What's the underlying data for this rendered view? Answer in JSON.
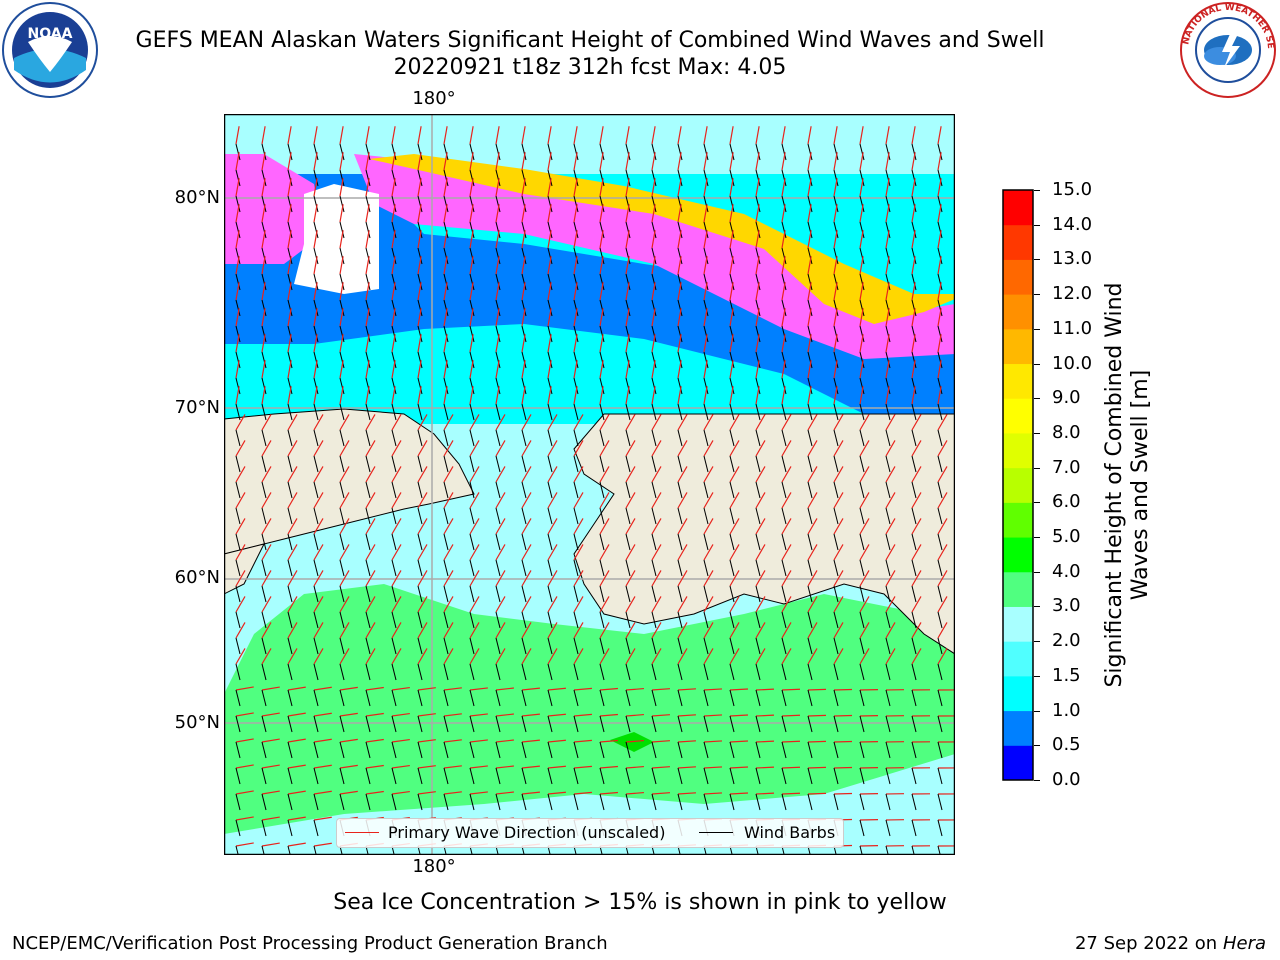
{
  "header": {
    "title_line1": "GEFS MEAN Alaskan Waters Significant Height of Combined Wind Waves and Swell",
    "title_line2": "20220921 t18z 312h fcst   Max: 4.05"
  },
  "logos": {
    "left_icon": "noaa-logo",
    "left_text": "NOAA",
    "right_icon": "nws-logo",
    "right_text": "NATIONAL WEATHER SERVICE"
  },
  "map": {
    "lon_label_top": "180°",
    "lon_label_bottom": "180°",
    "lat_labels": [
      "80°N",
      "70°N",
      "60°N",
      "50°N"
    ],
    "colors": {
      "land": "#efecdc",
      "coast": "#000000",
      "grid": "#aaaaaa",
      "wave_arrow": "#e8231c",
      "barb": "#000000"
    }
  },
  "colorbar": {
    "label": "Significant Height of Combined Wind Waves and Swell [m]",
    "ticks": [
      "0.0",
      "0.5",
      "1.0",
      "1.5",
      "2.0",
      "3.0",
      "4.0",
      "5.0",
      "6.0",
      "7.0",
      "8.0",
      "9.0",
      "10.0",
      "11.0",
      "12.0",
      "13.0",
      "14.0",
      "15.0"
    ],
    "colors": [
      "#0000ff",
      "#0080ff",
      "#00ffff",
      "#50ffff",
      "#a8ffff",
      "#50ff80",
      "#00ff00",
      "#60ff00",
      "#b8ff00",
      "#e0ff00",
      "#ffff00",
      "#ffe800",
      "#ffb800",
      "#ff9000",
      "#ff6800",
      "#ff3800",
      "#ff0000"
    ]
  },
  "legend": {
    "wave_label": "Primary Wave Direction (unscaled)",
    "barb_label": "Wind Barbs"
  },
  "ice_note": "Sea Ice Concentration > 15% is shown in pink to yellow",
  "footer": {
    "left": "NCEP/EMC/Verification Post Processing Product Generation Branch",
    "date": "27 Sep 2022 on",
    "host": "Hera"
  }
}
